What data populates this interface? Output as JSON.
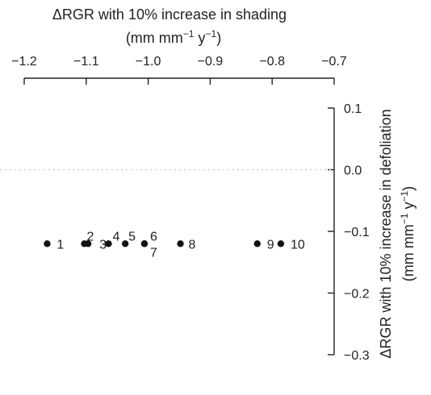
{
  "chart_data": {
    "type": "scatter",
    "x_axis": {
      "label_line1": "ΔRGR with 10% increase in shading",
      "label_line2_parts": [
        "(mm  mm",
        "−1",
        "  y",
        "−1",
        ")"
      ],
      "ticks": [
        -1.2,
        -1.1,
        -1.0,
        -0.9,
        -0.8,
        -0.7
      ],
      "tick_labels": [
        "−1.2",
        "−1.1",
        "−1.0",
        "−0.9",
        "−0.8",
        "−0.7"
      ],
      "range": [
        -1.2,
        -0.7
      ],
      "position": "top"
    },
    "y_axis": {
      "label_line1": "ΔRGR with 10% increase in defoliation",
      "label_line2_parts": [
        "(mm  mm",
        "−1",
        "  y",
        "−1",
        ")"
      ],
      "ticks": [
        0.1,
        0.0,
        -0.1,
        -0.2,
        -0.3
      ],
      "tick_labels": [
        "0.1",
        "0.0",
        "−0.1",
        "−0.2",
        "−0.3"
      ],
      "range": [
        -0.3,
        0.1
      ],
      "position": "right"
    },
    "reference_line": {
      "y": 0.0,
      "style": "dotted"
    },
    "points": [
      {
        "label": "1",
        "x": -1.163,
        "y": -0.12
      },
      {
        "label": "2",
        "x": -1.103,
        "y": -0.12
      },
      {
        "label": "3",
        "x": -1.097,
        "y": -0.12
      },
      {
        "label": "4",
        "x": -1.064,
        "y": -0.12
      },
      {
        "label": "5",
        "x": -1.037,
        "y": -0.12
      },
      {
        "label": "6",
        "x": -1.006,
        "y": -0.12
      },
      {
        "label": "7",
        "x": -1.006,
        "y": -0.12
      },
      {
        "label": "8",
        "x": -0.948,
        "y": -0.12
      },
      {
        "label": "9",
        "x": -0.824,
        "y": -0.12
      },
      {
        "label": "10",
        "x": -0.786,
        "y": -0.12
      }
    ],
    "grid": false,
    "legend": "none"
  }
}
